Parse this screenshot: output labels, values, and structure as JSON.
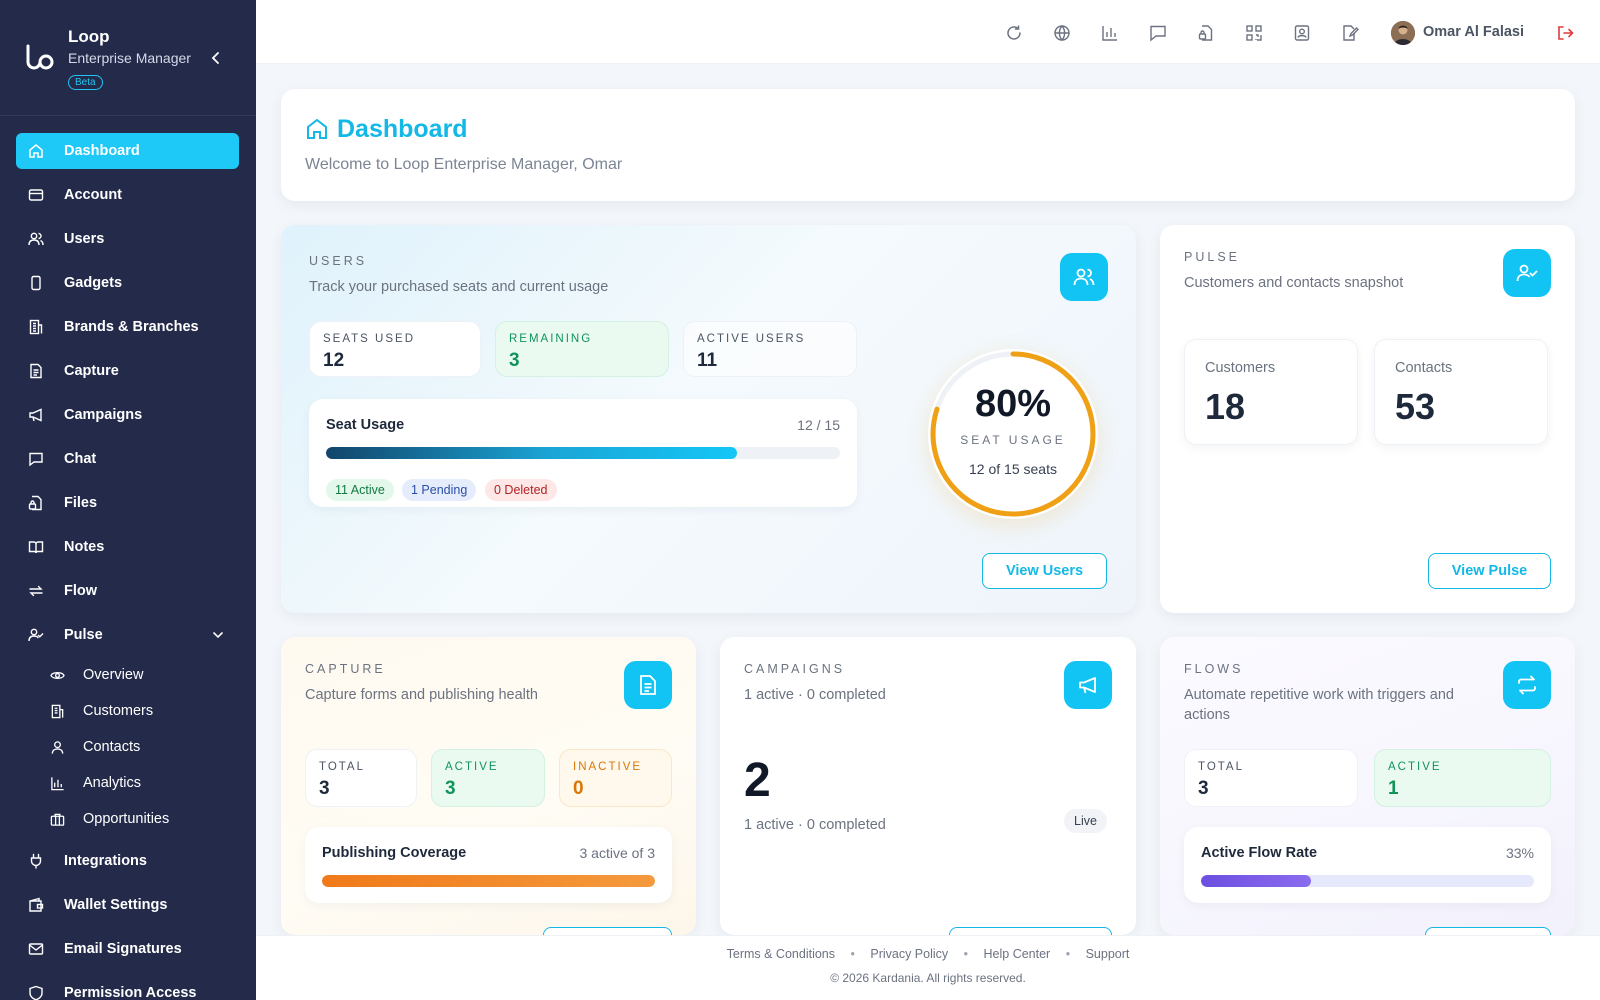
{
  "brand": {
    "name": "Loop",
    "subtitle": "Enterprise Manager",
    "badge": "Beta"
  },
  "nav": {
    "dashboard": "Dashboard",
    "account": "Account",
    "users": "Users",
    "gadgets": "Gadgets",
    "brands": "Brands & Branches",
    "capture": "Capture",
    "campaigns": "Campaigns",
    "chat": "Chat",
    "files": "Files",
    "notes": "Notes",
    "flow": "Flow",
    "pulse": "Pulse",
    "pulse_sub": {
      "overview": "Overview",
      "customers": "Customers",
      "contacts": "Contacts",
      "analytics": "Analytics",
      "opportunities": "Opportunities"
    },
    "integrations": "Integrations",
    "wallet": "Wallet Settings",
    "email_signatures": "Email Signatures",
    "permission": "Permission Access"
  },
  "topbar": {
    "user_name": "Omar Al Falasi",
    "icons": [
      "refresh-icon",
      "globe-icon",
      "bar-chart-icon",
      "message-icon",
      "file-lock-icon",
      "qr-code-icon",
      "contact-card-icon",
      "edit-document-icon",
      "logout-icon"
    ]
  },
  "welcome": {
    "title": "Dashboard",
    "subtitle": "Welcome to Loop Enterprise Manager, Omar"
  },
  "users_card": {
    "eyebrow": "USERS",
    "desc": "Track your purchased seats and current usage",
    "seats_used_label": "SEATS USED",
    "seats_used": "12",
    "remaining_label": "REMAINING",
    "remaining": "3",
    "active_label": "ACTIVE USERS",
    "active": "11",
    "seat_usage_title": "Seat Usage",
    "seat_usage_ratio": "12 / 15",
    "seat_usage_fraction": 0.8,
    "pill_active": "11 Active",
    "pill_pending": "1 Pending",
    "pill_deleted": "0 Deleted",
    "gauge_percent": "80%",
    "gauge_label": "SEAT USAGE",
    "gauge_sub": "12 of 15 seats",
    "gauge_fraction": 0.8,
    "button": "View Users"
  },
  "pulse_card": {
    "eyebrow": "PULSE",
    "desc": "Customers and contacts snapshot",
    "customers_label": "Customers",
    "customers": "18",
    "contacts_label": "Contacts",
    "contacts": "53",
    "button": "View Pulse"
  },
  "capture_card": {
    "eyebrow": "CAPTURE",
    "desc": "Capture forms and publishing health",
    "total_label": "TOTAL",
    "total": "3",
    "active_label": "ACTIVE",
    "active": "3",
    "inactive_label": "INACTIVE",
    "inactive": "0",
    "coverage_title": "Publishing Coverage",
    "coverage_text": "3 active of 3",
    "coverage_fraction": 1.0
  },
  "campaigns_card": {
    "eyebrow": "CAMPAIGNS",
    "desc": "1 active · 0 completed",
    "big_value": "2",
    "sub": "1 active · 0 completed",
    "badge": "Live"
  },
  "flows_card": {
    "eyebrow": "FLOWS",
    "desc": "Automate repetitive work with triggers and actions",
    "total_label": "TOTAL",
    "total": "3",
    "active_label": "ACTIVE",
    "active": "1",
    "rate_title": "Active Flow Rate",
    "rate_text": "33%",
    "rate_fraction": 0.33
  },
  "footer": {
    "terms": "Terms & Conditions",
    "privacy": "Privacy Policy",
    "help": "Help Center",
    "support": "Support",
    "copyright": "© 2026 Kardania. All rights reserved."
  },
  "colors": {
    "accent": "#12c4f3",
    "sidebar": "#242a4a",
    "gauge": "#f0a014"
  }
}
